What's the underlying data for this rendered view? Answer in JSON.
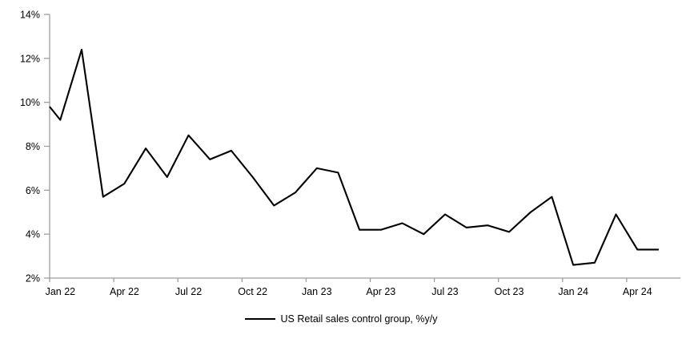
{
  "chart_data": {
    "type": "line",
    "title": "",
    "xlabel": "",
    "ylabel": "",
    "grid": false,
    "legend_position": "bottom",
    "ylim": [
      2,
      14
    ],
    "y_tick_values": [
      2,
      4,
      6,
      8,
      10,
      12,
      14
    ],
    "y_tick_labels": [
      "2%",
      "4%",
      "6%",
      "8%",
      "10%",
      "12%",
      "14%"
    ],
    "x_tick_labels": [
      "Jan 22",
      "Apr 22",
      "Jul 22",
      "Oct 22",
      "Jan 23",
      "Apr 23",
      "Jul 23",
      "Oct 23",
      "Jan 24",
      "Apr 24"
    ],
    "x_tick_interval": 3,
    "categories": [
      "Jan 22",
      "Feb 22",
      "Mar 22",
      "Apr 22",
      "May 22",
      "Jun 22",
      "Jul 22",
      "Aug 22",
      "Sep 22",
      "Oct 22",
      "Nov 22",
      "Dec 22",
      "Jan 23",
      "Feb 23",
      "Mar 23",
      "Apr 23",
      "May 23",
      "Jun 23",
      "Jul 23",
      "Aug 23",
      "Sep 23",
      "Oct 23",
      "Nov 23",
      "Dec 23",
      "Jan 24",
      "Feb 24",
      "Mar 24",
      "Apr 24",
      "May 24"
    ],
    "series": [
      {
        "name": "US Retail sales control group, %y/y",
        "color": "#000000",
        "values": [
          9.2,
          12.4,
          5.7,
          6.3,
          7.9,
          6.6,
          8.5,
          7.4,
          7.8,
          6.6,
          5.3,
          5.9,
          7.0,
          6.8,
          4.2,
          4.2,
          4.5,
          4.0,
          4.9,
          4.3,
          4.4,
          4.1,
          5.0,
          5.7,
          2.6,
          2.7,
          4.9,
          3.3,
          3.3
        ]
      }
    ],
    "clipped_left_edge_value": 9.8,
    "colors": {
      "axis": "#9e9e9e",
      "text": "#000000",
      "line": "#000000",
      "background": "#ffffff"
    }
  },
  "legend": {
    "label": "US Retail sales control group, %y/y"
  }
}
